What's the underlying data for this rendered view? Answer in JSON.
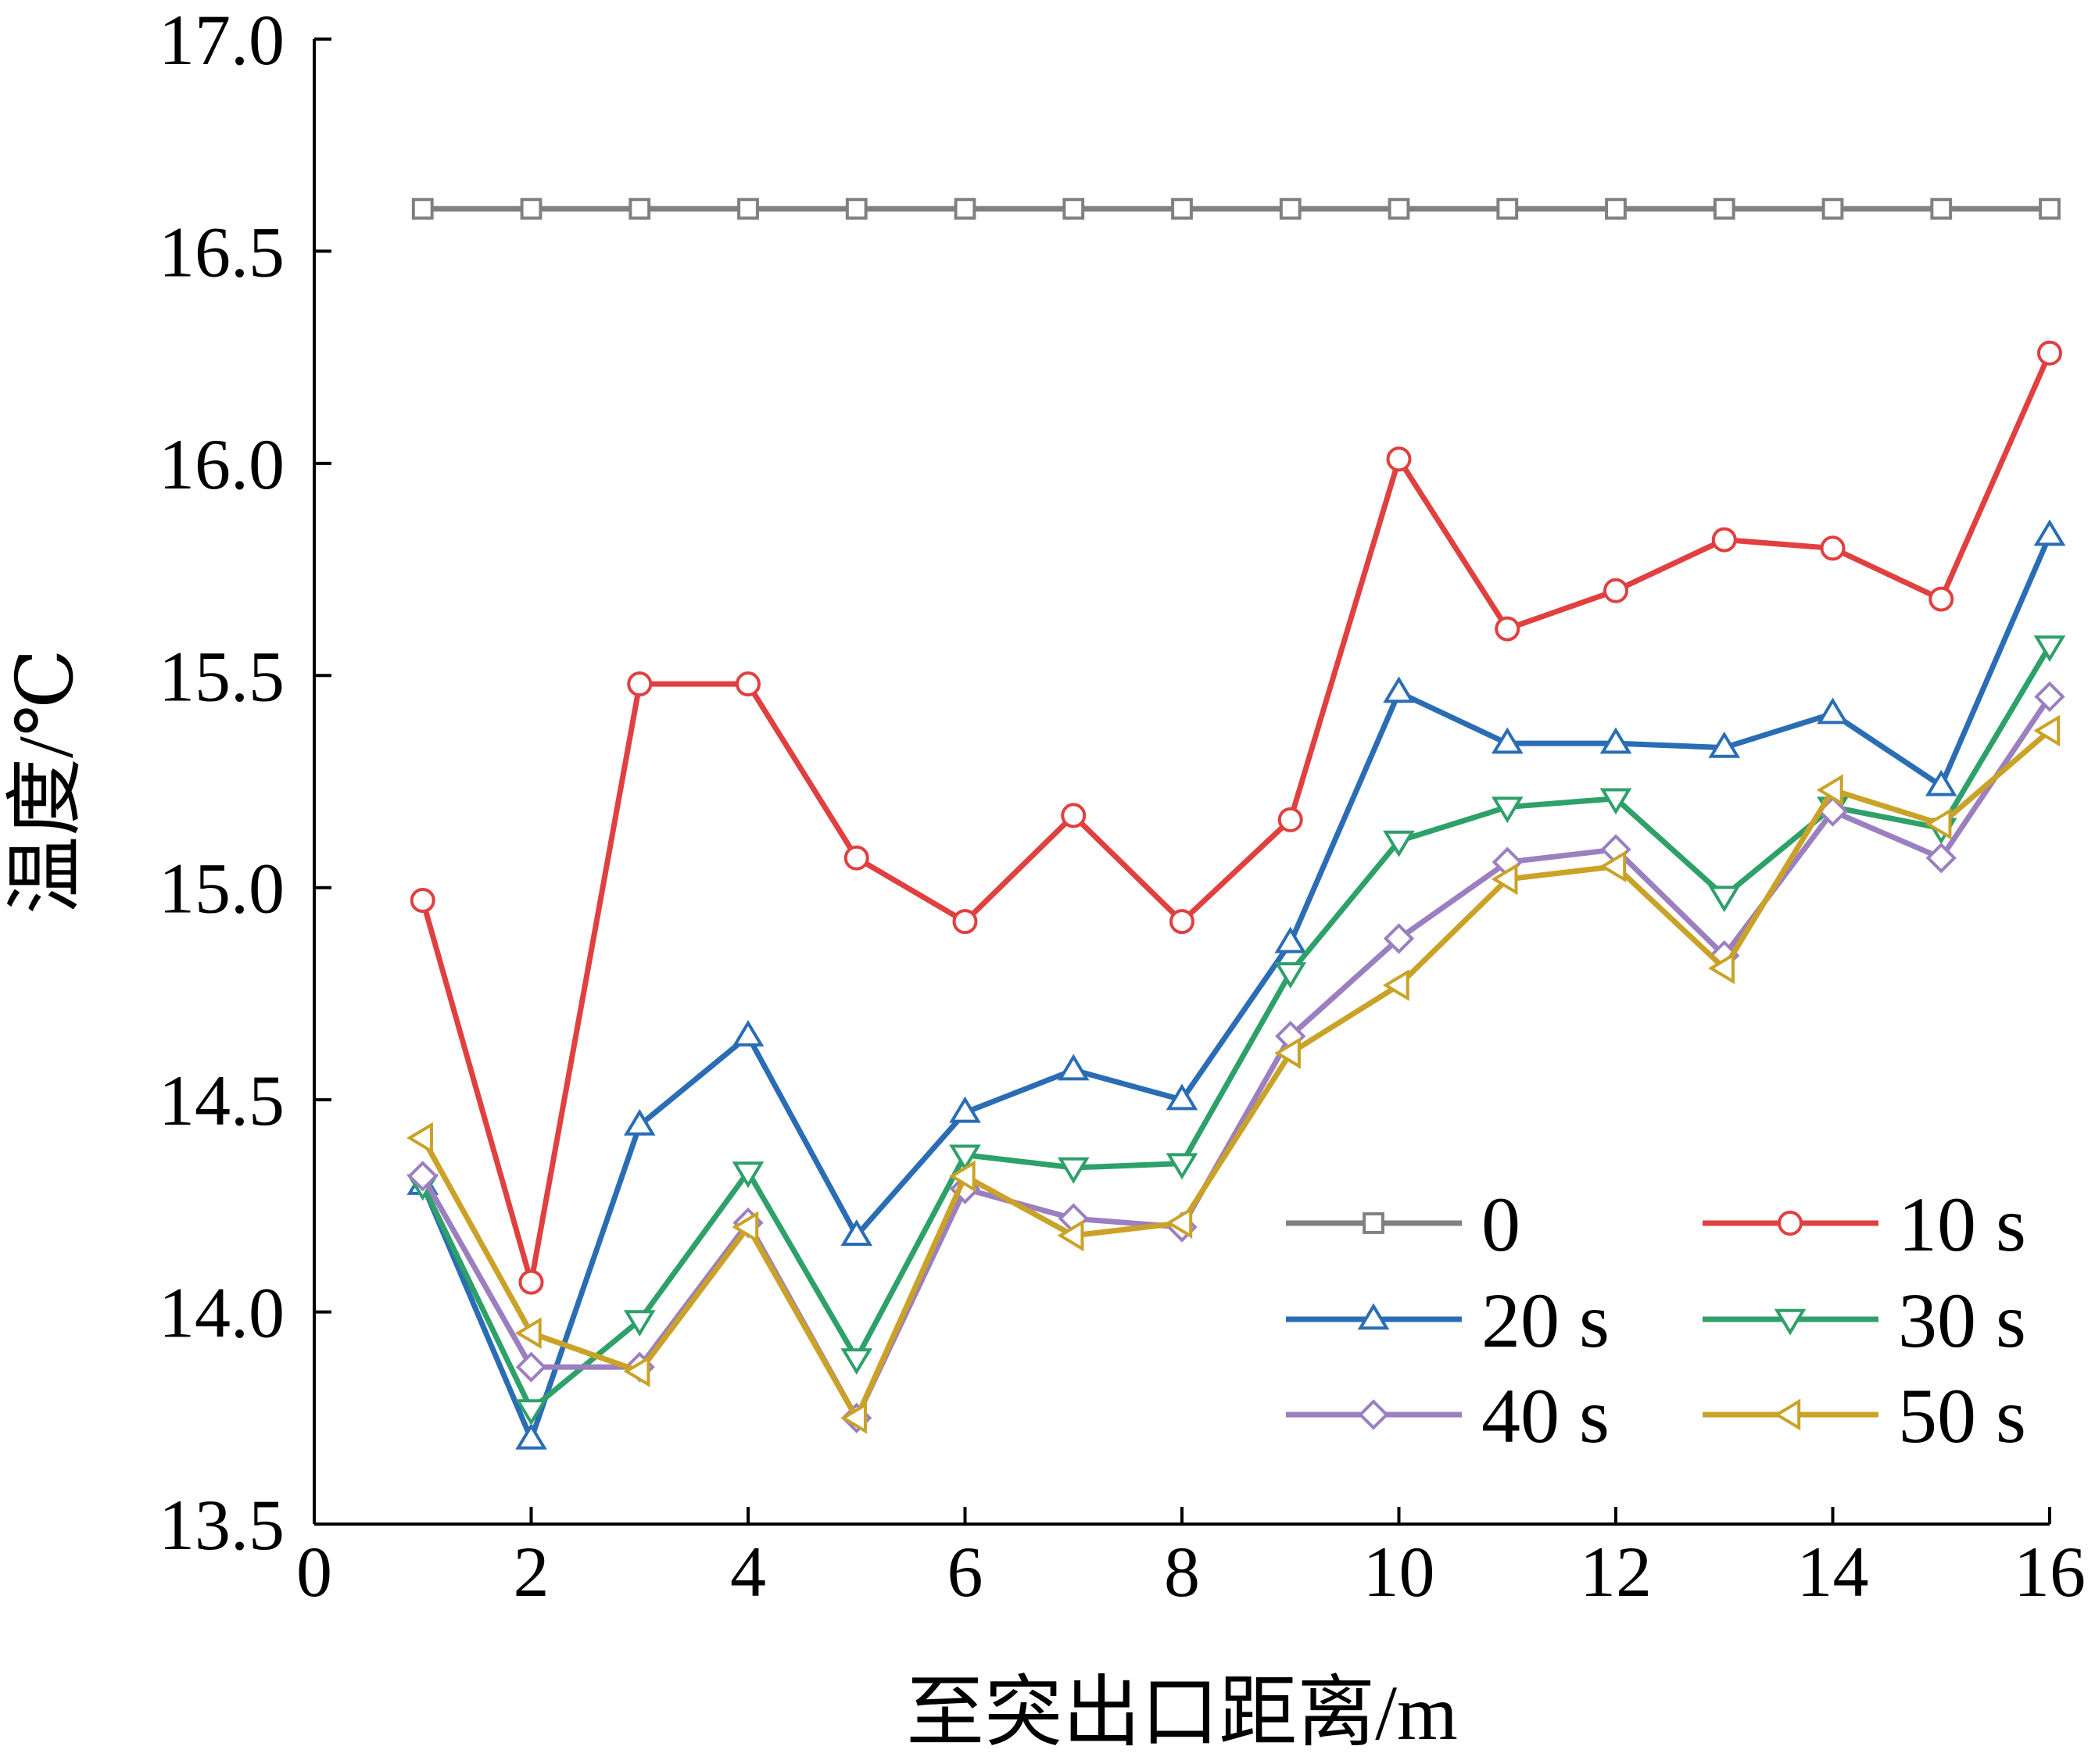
{
  "chart_data": {
    "type": "line",
    "title": "",
    "xlabel": "至突出口距离/m",
    "ylabel": "温度/℃",
    "xlim": [
      0,
      16
    ],
    "ylim": [
      13.5,
      17.0
    ],
    "x_ticks": [
      "0",
      "2",
      "4",
      "6",
      "8",
      "10",
      "12",
      "14",
      "16"
    ],
    "y_ticks": [
      "13.5",
      "14.0",
      "14.5",
      "15.0",
      "15.5",
      "16.0",
      "16.5",
      "17.0"
    ],
    "grid": false,
    "legend_position": "bottom-right",
    "x": [
      1,
      2,
      3,
      4,
      5,
      6,
      7,
      8,
      9,
      10,
      11,
      12,
      13,
      14,
      15,
      16
    ],
    "series": [
      {
        "name": "0",
        "color": "#808080",
        "marker": "square-icon",
        "values": [
          16.6,
          16.6,
          16.6,
          16.6,
          16.6,
          16.6,
          16.6,
          16.6,
          16.6,
          16.6,
          16.6,
          16.6,
          16.6,
          16.6,
          16.6,
          16.6
        ]
      },
      {
        "name": "10 s",
        "color": "#e04040",
        "marker": "circle-icon",
        "values": [
          14.97,
          14.07,
          15.48,
          15.48,
          15.07,
          14.92,
          15.17,
          14.92,
          15.16,
          16.01,
          15.61,
          15.7,
          15.82,
          15.8,
          15.68,
          16.26
        ]
      },
      {
        "name": "20 s",
        "color": "#2a6db5",
        "marker": "triangle-up-icon",
        "values": [
          14.3,
          13.7,
          14.44,
          14.65,
          14.18,
          14.47,
          14.57,
          14.5,
          14.87,
          15.46,
          15.34,
          15.34,
          15.33,
          15.41,
          15.24,
          15.83
        ]
      },
      {
        "name": "30 s",
        "color": "#2ea06a",
        "marker": "triangle-down-icon",
        "values": [
          14.3,
          13.77,
          13.98,
          14.33,
          13.89,
          14.37,
          14.34,
          14.35,
          14.8,
          15.11,
          15.19,
          15.21,
          14.98,
          15.19,
          15.14,
          15.57
        ]
      },
      {
        "name": "40 s",
        "color": "#9b7fc0",
        "marker": "diamond-icon",
        "values": [
          14.32,
          13.87,
          13.87,
          14.21,
          13.75,
          14.29,
          14.22,
          14.2,
          14.65,
          14.88,
          15.06,
          15.09,
          14.84,
          15.18,
          15.07,
          15.45
        ]
      },
      {
        "name": "50 s",
        "color": "#c9a227",
        "marker": "triangle-left-icon",
        "values": [
          14.41,
          13.95,
          13.86,
          14.2,
          13.75,
          14.32,
          14.18,
          14.21,
          14.61,
          14.77,
          15.02,
          15.05,
          14.81,
          15.23,
          15.15,
          15.37
        ]
      }
    ]
  }
}
